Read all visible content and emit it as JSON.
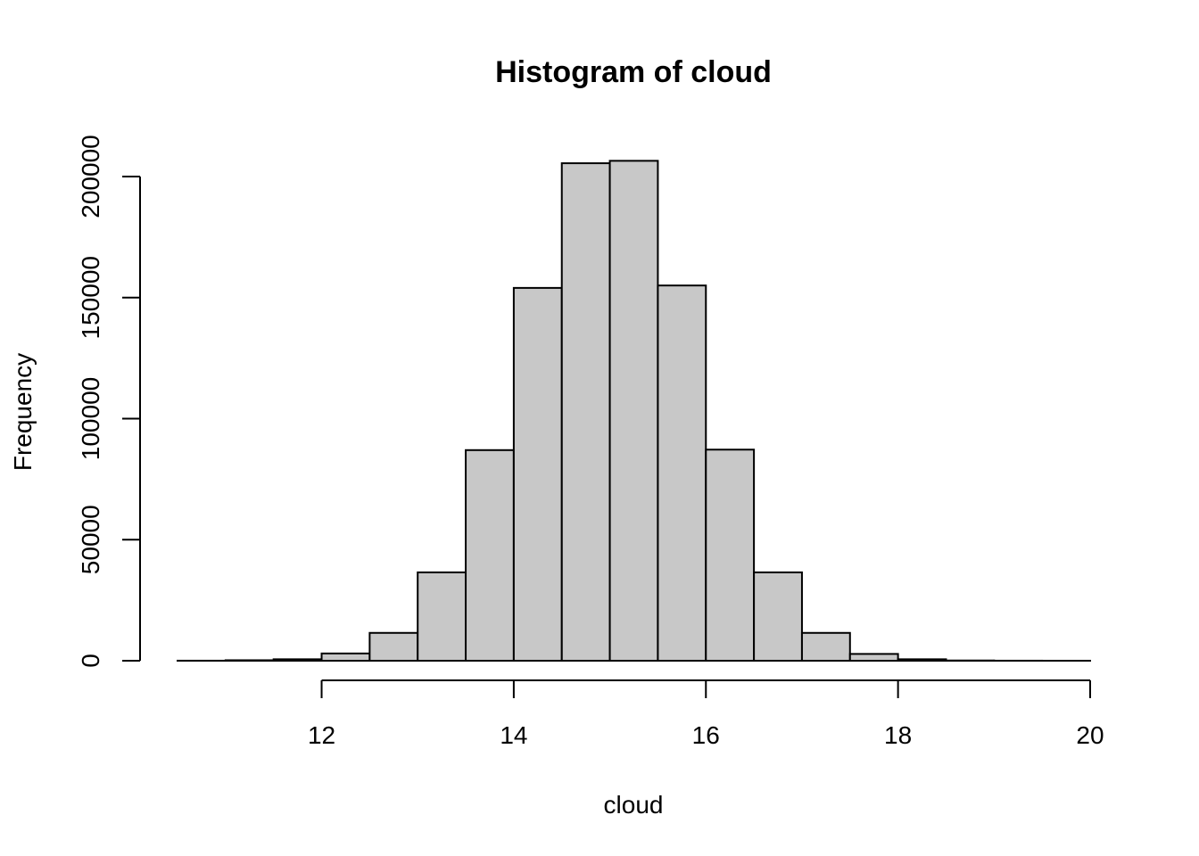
{
  "chart_data": {
    "type": "bar",
    "title": "Histogram of cloud",
    "xlabel": "cloud",
    "ylabel": "Frequency",
    "bin_edges": [
      10.5,
      11.0,
      11.5,
      12.0,
      12.5,
      13.0,
      13.5,
      14.0,
      14.5,
      15.0,
      15.5,
      16.0,
      16.5,
      17.0,
      17.5,
      18.0,
      18.5,
      19.0,
      19.5,
      20.0
    ],
    "values": [
      20,
      200,
      600,
      3000,
      11500,
      36500,
      87000,
      154000,
      205500,
      206500,
      155000,
      87200,
      36500,
      11500,
      2800,
      600,
      100,
      20,
      5
    ],
    "x_ticks": [
      12,
      14,
      16,
      18,
      20
    ],
    "x_tick_labels": [
      "12",
      "14",
      "16",
      "18",
      "20"
    ],
    "y_ticks": [
      0,
      50000,
      100000,
      150000,
      200000
    ],
    "y_tick_labels": [
      "0",
      "50000",
      "100000",
      "150000",
      "200000"
    ],
    "xlim": [
      10.5,
      20.0
    ],
    "ylim": [
      0,
      200000
    ],
    "grid": false,
    "colors": {
      "bar_fill": "#c8c8c8",
      "bar_stroke": "#000000",
      "axis": "#000000"
    }
  }
}
